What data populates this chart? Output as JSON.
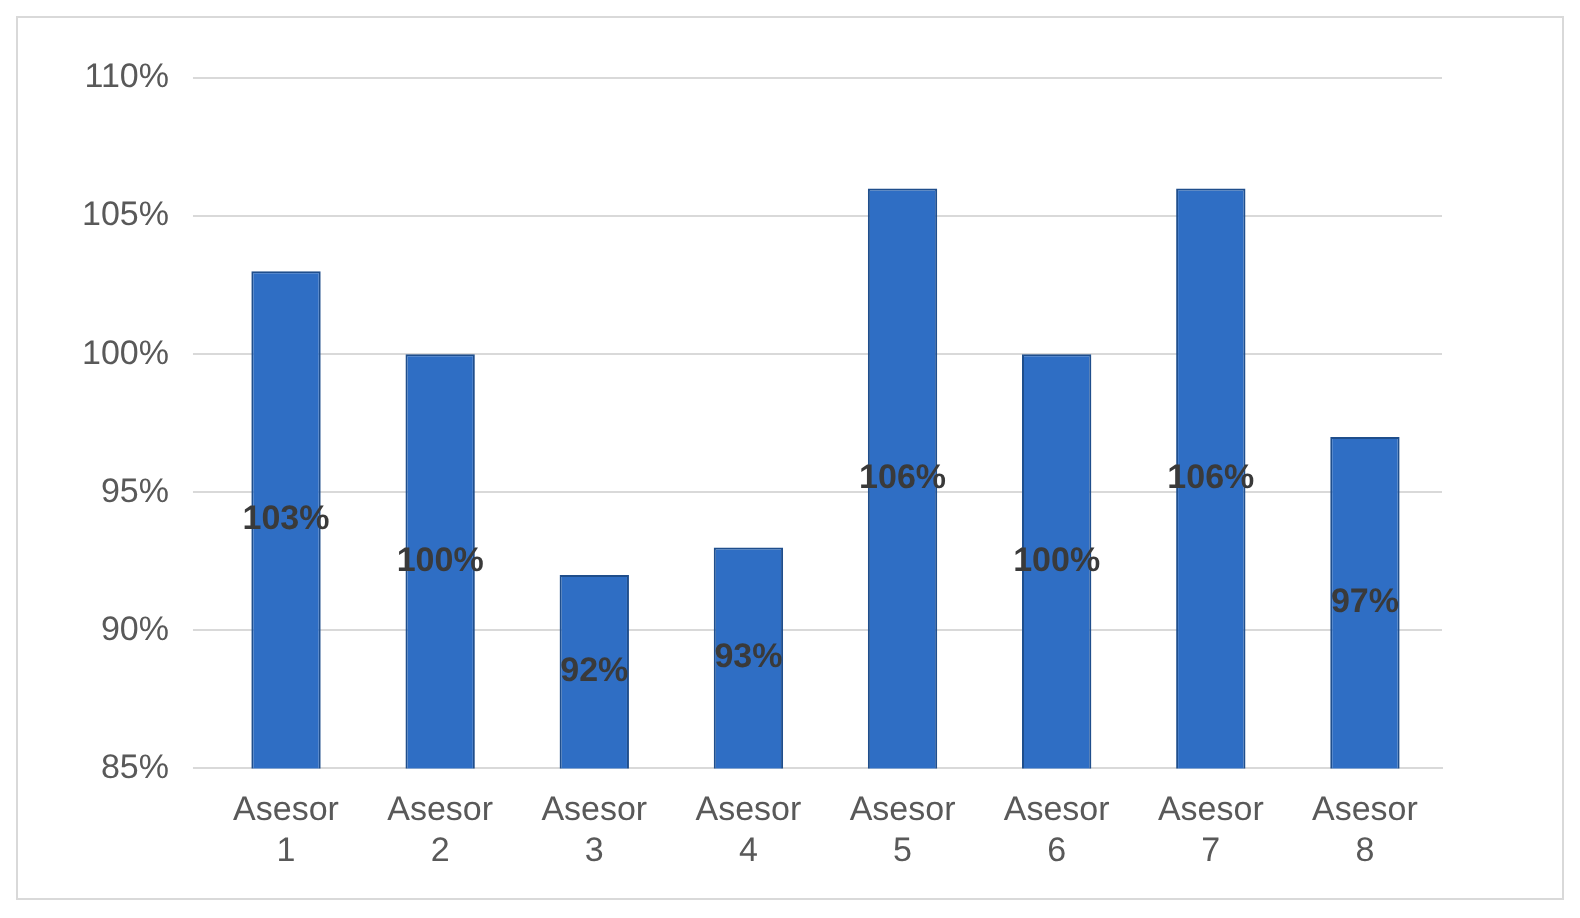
{
  "chart_data": {
    "type": "bar",
    "categories": [
      "Asesor 1",
      "Asesor 2",
      "Asesor 3",
      "Asesor 4",
      "Asesor 5",
      "Asesor 6",
      "Asesor 7",
      "Asesor 8"
    ],
    "values": [
      103,
      100,
      92,
      93,
      106,
      100,
      106,
      97
    ],
    "value_labels": [
      "103%",
      "100%",
      "92%",
      "93%",
      "106%",
      "100%",
      "106%",
      "97%"
    ],
    "color": "#2f6ec4",
    "ylim": [
      85,
      110
    ],
    "yticks": [
      {
        "value": 85,
        "label": "85%"
      },
      {
        "value": 90,
        "label": "90%"
      },
      {
        "value": 95,
        "label": "95%"
      },
      {
        "value": 100,
        "label": "100%"
      },
      {
        "value": 105,
        "label": "105%"
      },
      {
        "value": 110,
        "label": "110%"
      }
    ],
    "grid": "y"
  }
}
